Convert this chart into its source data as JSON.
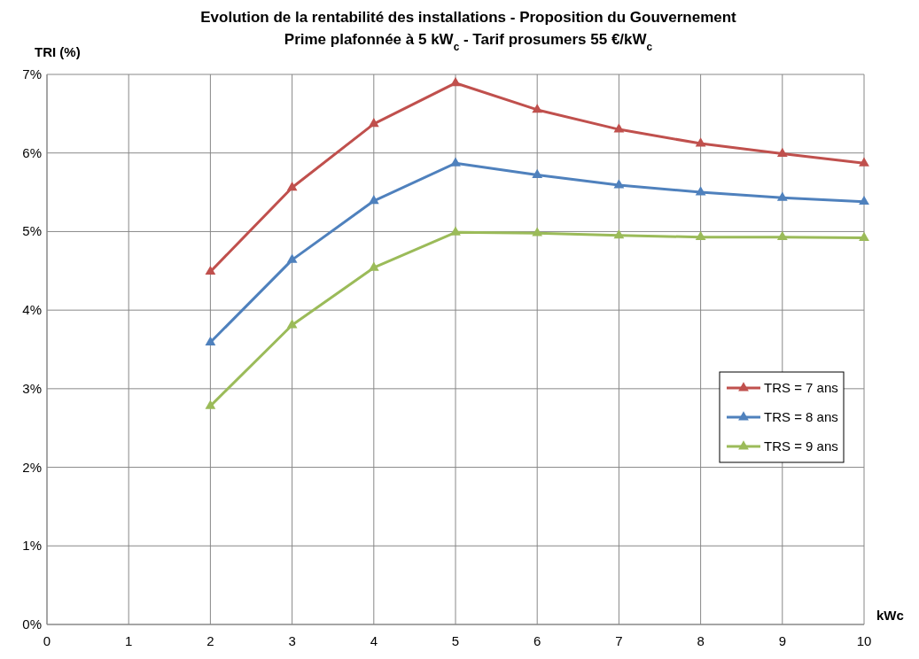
{
  "chart_data": {
    "type": "line",
    "title": "Evolution de la rentabilité des installations - Proposition du Gouvernement",
    "subtitle": "Prime plafonnée à 5 kW$_{c}$ - Tarif prosumers 55 €/kW$_{c}$",
    "xlabel": "kWc",
    "ylabel": "TRI (%)",
    "x": [
      2,
      3,
      4,
      5,
      6,
      7,
      8,
      9,
      10
    ],
    "xlim": [
      0,
      10
    ],
    "xticks": [
      0,
      1,
      2,
      3,
      4,
      5,
      6,
      7,
      8,
      9,
      10
    ],
    "ylim": [
      0,
      7
    ],
    "yticks": [
      {
        "value": 0,
        "label": "0%"
      },
      {
        "value": 1,
        "label": "1%"
      },
      {
        "value": 2,
        "label": "2%"
      },
      {
        "value": 3,
        "label": "3%"
      },
      {
        "value": 4,
        "label": "4%"
      },
      {
        "value": 5,
        "label": "5%"
      },
      {
        "value": 6,
        "label": "6%"
      },
      {
        "value": 7,
        "label": "7%"
      }
    ],
    "grid": true,
    "legend": "right",
    "marker": "triangle",
    "line_style": "solid",
    "series": [
      {
        "name": "TRS = 7 ans",
        "color": "#c0504d",
        "values": [
          4.49,
          5.56,
          6.37,
          6.89,
          6.55,
          6.3,
          6.12,
          5.99,
          5.87
        ]
      },
      {
        "name": "TRS = 8 ans",
        "color": "#4f81bd",
        "values": [
          3.59,
          4.64,
          5.39,
          5.87,
          5.72,
          5.59,
          5.5,
          5.43,
          5.38
        ]
      },
      {
        "name": "TRS = 9 ans",
        "color": "#9bbb59",
        "values": [
          2.78,
          3.81,
          4.54,
          4.99,
          4.98,
          4.95,
          4.93,
          4.93,
          4.92
        ]
      }
    ]
  }
}
